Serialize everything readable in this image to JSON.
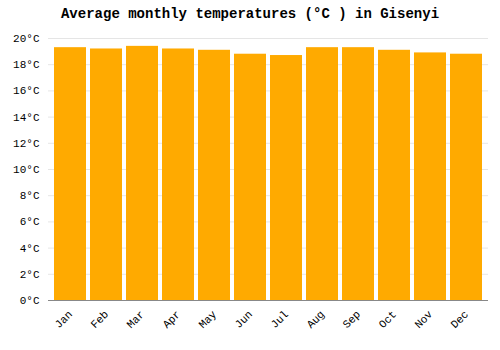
{
  "chart_data": {
    "type": "bar",
    "title": "Average monthly temperatures (°C ) in Gisenyi",
    "categories": [
      "Jan",
      "Feb",
      "Mar",
      "Apr",
      "May",
      "Jun",
      "Jul",
      "Aug",
      "Sep",
      "Oct",
      "Nov",
      "Dec"
    ],
    "values": [
      19.3,
      19.2,
      19.4,
      19.2,
      19.1,
      18.8,
      18.7,
      19.3,
      19.3,
      19.1,
      18.9,
      18.8
    ],
    "color": "#FFAA00",
    "ylim": [
      0,
      20
    ],
    "yticks": [
      {
        "value": 0,
        "label": "0°C"
      },
      {
        "value": 2,
        "label": "2°C"
      },
      {
        "value": 4,
        "label": "4°C"
      },
      {
        "value": 6,
        "label": "6°C"
      },
      {
        "value": 8,
        "label": "8°C"
      },
      {
        "value": 10,
        "label": "10°C"
      },
      {
        "value": 12,
        "label": "12°C"
      },
      {
        "value": 14,
        "label": "14°C"
      },
      {
        "value": 16,
        "label": "16°C"
      },
      {
        "value": 18,
        "label": "18°C"
      },
      {
        "value": 20,
        "label": "20°C"
      }
    ],
    "grid": true
  }
}
